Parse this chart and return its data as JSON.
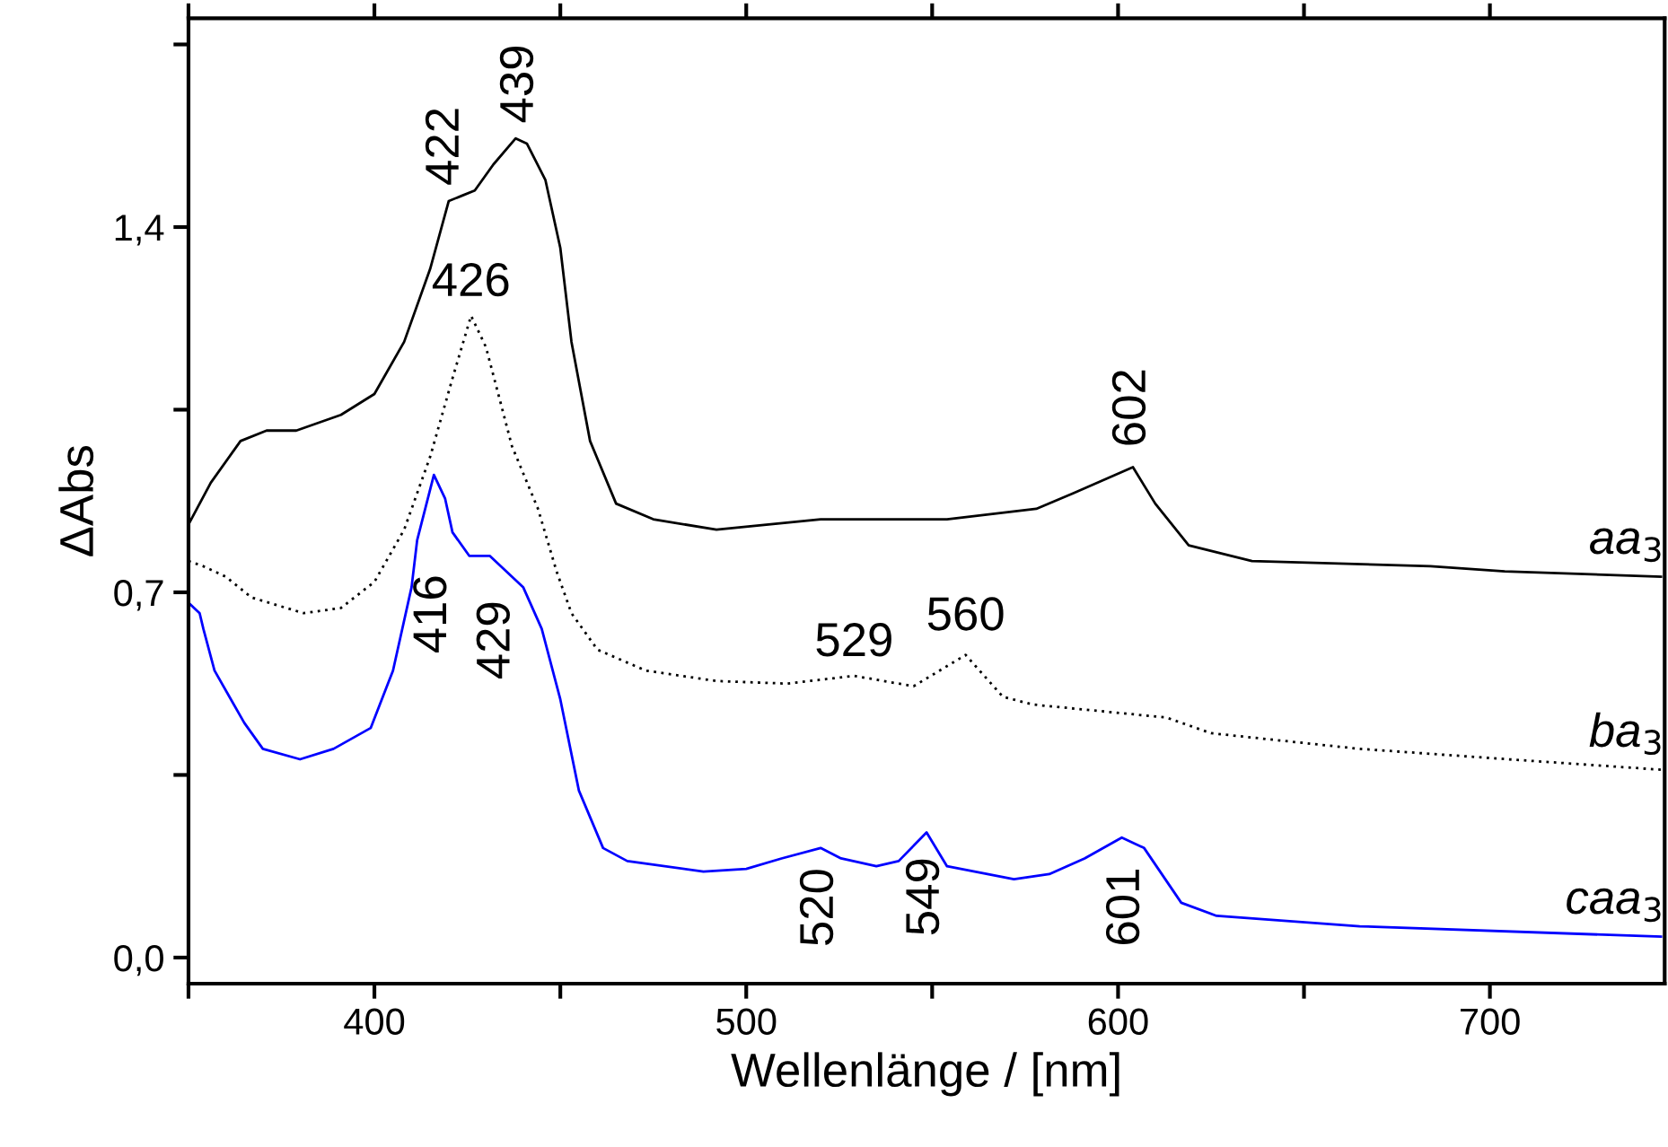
{
  "chart_data": {
    "type": "line",
    "xlabel": "Wellenlänge / [nm]",
    "ylabel": "ΔAbs",
    "xlim": [
      350,
      747
    ],
    "ylim": [
      -0.05,
      1.8
    ],
    "xticks": [
      {
        "value": 350,
        "label": null
      },
      400,
      {
        "value": 450,
        "label": null
      },
      500,
      {
        "value": 550,
        "label": null
      },
      600,
      {
        "value": 650,
        "label": null
      },
      700
    ],
    "yticks": [
      {
        "value": 0,
        "label": "0,0"
      },
      {
        "value": 0.35,
        "label": null
      },
      {
        "value": 0.7,
        "label": "0,7"
      },
      {
        "value": 1.05,
        "label": null
      },
      {
        "value": 1.4,
        "label": "1,4"
      },
      {
        "value": 1.75,
        "label": null
      }
    ],
    "grid": false,
    "legend": false,
    "marker": "none",
    "series": [
      {
        "name": "aa$_{3}$",
        "color": "#000000",
        "line_style": "solid",
        "x": [
          350,
          356,
          364,
          371,
          379,
          391,
          400,
          408,
          415,
          420,
          423.5,
          427,
          432,
          438,
          441,
          446,
          450,
          453,
          458,
          465,
          475,
          492,
          506,
          520,
          554,
          578,
          588,
          604,
          610,
          619,
          636,
          684,
          704,
          746
        ],
        "values": [
          0.83,
          0.91,
          0.99,
          1.01,
          1.01,
          1.04,
          1.08,
          1.18,
          1.32,
          1.45,
          1.46,
          1.47,
          1.52,
          1.57,
          1.56,
          1.49,
          1.36,
          1.18,
          0.99,
          0.87,
          0.84,
          0.82,
          0.83,
          0.84,
          0.84,
          0.86,
          0.89,
          0.94,
          0.87,
          0.79,
          0.76,
          0.75,
          0.74,
          0.73
        ]
      },
      {
        "name": "ba$_{3}$",
        "color": "#000000",
        "line_style": "dotted",
        "x": [
          350,
          354,
          360,
          367,
          381,
          391,
          400,
          408,
          415,
          421,
          426,
          430,
          437,
          444,
          449,
          453,
          460,
          473,
          492,
          511,
          529,
          545,
          559,
          569,
          577,
          613,
          625,
          665,
          705,
          746
        ],
        "values": [
          0.76,
          0.75,
          0.73,
          0.69,
          0.66,
          0.67,
          0.72,
          0.82,
          0.96,
          1.11,
          1.23,
          1.17,
          0.98,
          0.86,
          0.74,
          0.66,
          0.59,
          0.55,
          0.53,
          0.525,
          0.54,
          0.52,
          0.58,
          0.5,
          0.485,
          0.46,
          0.43,
          0.4,
          0.38,
          0.36
        ]
      },
      {
        "name": "caa$_{3}$",
        "color": "#0000ff",
        "line_style": "solid",
        "x": [
          350,
          353,
          354,
          357,
          365,
          370,
          380,
          389,
          399,
          405,
          410,
          411.5,
          416,
          419,
          421,
          425.5,
          431,
          440,
          445,
          450,
          455,
          461.5,
          468,
          488.5,
          500,
          509.5,
          520,
          525.5,
          535,
          541,
          548.5,
          554,
          572,
          581.5,
          591,
          601,
          607,
          617,
          626.5,
          665,
          746
        ],
        "values": [
          0.68,
          0.66,
          0.63,
          0.55,
          0.45,
          0.4,
          0.38,
          0.4,
          0.44,
          0.55,
          0.71,
          0.8,
          0.925,
          0.88,
          0.815,
          0.77,
          0.77,
          0.71,
          0.63,
          0.495,
          0.32,
          0.21,
          0.185,
          0.165,
          0.17,
          0.19,
          0.21,
          0.19,
          0.175,
          0.185,
          0.24,
          0.175,
          0.15,
          0.16,
          0.19,
          0.23,
          0.21,
          0.105,
          0.08,
          0.06,
          0.04
        ]
      }
    ],
    "annotations": [
      {
        "text": "422",
        "x": 422,
        "y": 1.46
      },
      {
        "text": "439",
        "x": 438,
        "y": 1.57
      },
      {
        "text": "426",
        "x": 426,
        "y": 1.23
      },
      {
        "text": "602",
        "x": 604,
        "y": 0.94
      },
      {
        "text": "416",
        "x": 416,
        "y": 0.925
      },
      {
        "text": "429",
        "x": 429,
        "y": 0.77
      },
      {
        "text": "529",
        "x": 529,
        "y": 0.54
      },
      {
        "text": "560",
        "x": 559,
        "y": 0.58
      },
      {
        "text": "520",
        "x": 520,
        "y": 0.21
      },
      {
        "text": "549",
        "x": 548.5,
        "y": 0.24
      },
      {
        "text": "601",
        "x": 601,
        "y": 0.23
      }
    ]
  }
}
